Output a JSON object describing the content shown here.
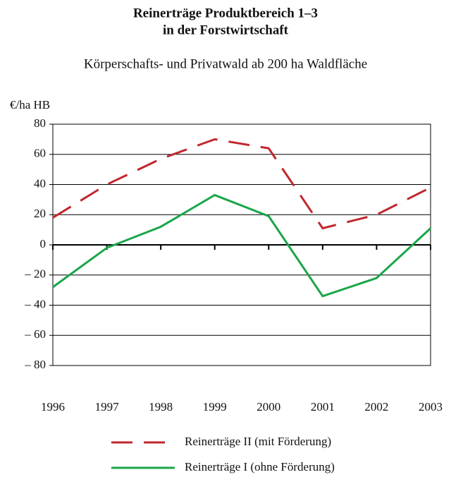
{
  "chart_data": {
    "type": "line",
    "title": [
      "Reinerträge Produktbereich 1–3",
      "in der Forstwirtschaft"
    ],
    "subtitle": "Körperschafts- und Privatwald ab 200 ha Waldfläche",
    "ylabel": "€/ha HB",
    "x": [
      1996,
      1997,
      1998,
      1999,
      2000,
      2001,
      2002,
      2003
    ],
    "xlim": [
      1996,
      2003
    ],
    "xticks": [
      1996,
      1997,
      1998,
      1999,
      2000,
      2001,
      2002,
      2003
    ],
    "ylim": [
      -80,
      80
    ],
    "yticks": [
      {
        "value": -80,
        "label": "– 80"
      },
      {
        "value": -60,
        "label": "– 60"
      },
      {
        "value": -40,
        "label": "– 40"
      },
      {
        "value": -20,
        "label": "– 20"
      },
      0,
      20,
      40,
      60,
      80
    ],
    "grid": true,
    "series": [
      {
        "name": "Reinerträge II (mit Förderung)",
        "color": "#c1272d",
        "dashed": true,
        "values": [
          18,
          40,
          57,
          70,
          64,
          11,
          20,
          38
        ]
      },
      {
        "name": "Reinerträge I (ohne Förderung)",
        "color": "#1aa64a",
        "dashed": false,
        "values": [
          -28,
          -2,
          12,
          33,
          19,
          -34,
          -22,
          11
        ]
      }
    ]
  }
}
